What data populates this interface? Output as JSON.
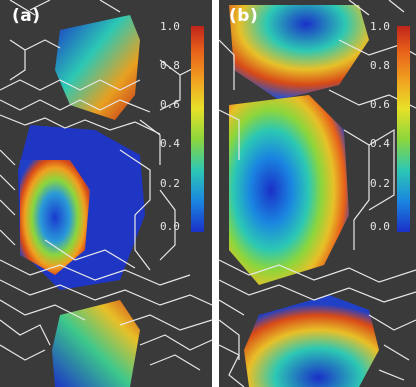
{
  "panels": [
    {
      "label": "(a)"
    },
    {
      "label": "(b)"
    }
  ],
  "colorbar": {
    "ticks": [
      "1.0",
      "0.8",
      "0.6",
      "0.4",
      "0.2",
      "0.0"
    ],
    "gradient_colors": [
      "#c0241a",
      "#e8601a",
      "#f0a020",
      "#e8e028",
      "#8cd63c",
      "#2cc8b4",
      "#1a86e0",
      "#1a30c8"
    ]
  }
}
